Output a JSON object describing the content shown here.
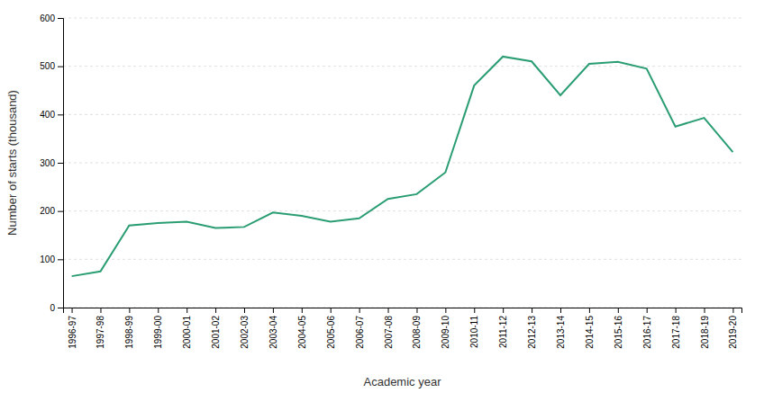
{
  "chart_data": {
    "type": "line",
    "xlabel": "Academic year",
    "ylabel": "Number of starts (thousand)",
    "categories": [
      "1996-97",
      "1997-98",
      "1998-99",
      "1999-00",
      "2000-01",
      "2001-02",
      "2002-03",
      "2003-04",
      "2004-05",
      "2005-06",
      "2006-07",
      "2007-08",
      "2008-09",
      "2009-10",
      "2010-11",
      "2011-12",
      "2012-13",
      "2013-14",
      "2014-15",
      "2015-16",
      "2016-17",
      "2017-18",
      "2018-19",
      "2019-20"
    ],
    "values": [
      65,
      75,
      170,
      175,
      178,
      165,
      167,
      197,
      190,
      178,
      185,
      225,
      235,
      280,
      460,
      520,
      510,
      440,
      505,
      509,
      495,
      375,
      393,
      322
    ],
    "color": "#2a9d72",
    "ylim": [
      0,
      600
    ],
    "yticks": [
      0,
      100,
      200,
      300,
      400,
      500,
      600
    ],
    "grid": true
  }
}
